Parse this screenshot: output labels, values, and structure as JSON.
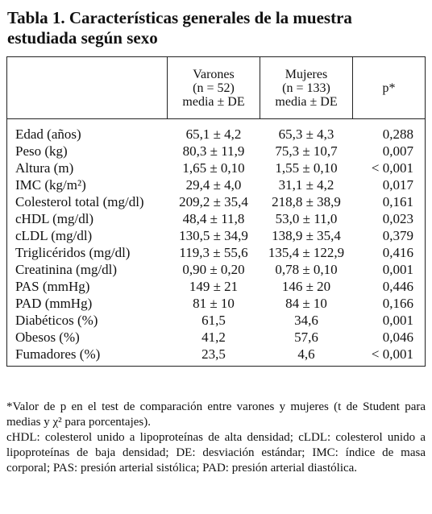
{
  "header": {
    "title": "Tabla 1. Características generales de la muestra estudiada según sexo"
  },
  "table": {
    "columns": [
      [
        "Varones",
        "(n = 52)",
        "media ± DE"
      ],
      [
        "Mujeres",
        "(n = 133)",
        "media ± DE"
      ],
      [
        "p*"
      ]
    ],
    "rows": [
      [
        "Edad (años)",
        "65,1 ± 4,2",
        "65,3 ± 4,3",
        "0,288"
      ],
      [
        "Peso (kg)",
        "80,3 ± 11,9",
        "75,3 ± 10,7",
        "0,007"
      ],
      [
        "Altura (m)",
        "1,65 ± 0,10",
        "1,55 ± 0,10",
        "< 0,001"
      ],
      [
        "IMC (kg/m²)",
        "29,4 ± 4,0",
        "31,1 ± 4,2",
        "0,017"
      ],
      [
        "Colesterol total (mg/dl)",
        "209,2 ± 35,4",
        "218,8 ± 38,9",
        "0,161"
      ],
      [
        "cHDL (mg/dl)",
        "48,4 ± 11,8",
        "53,0 ± 11,0",
        "0,023"
      ],
      [
        "cLDL (mg/dl)",
        "130,5 ± 34,9",
        "138,9 ± 35,4",
        "0,379"
      ],
      [
        "Triglicéridos (mg/dl)",
        "119,3 ± 55,6",
        "135,4 ± 122,9",
        "0,416"
      ],
      [
        "Creatinina (mg/dl)",
        "0,90 ± 0,20",
        "0,78 ± 0,10",
        "0,001"
      ],
      [
        "PAS (mmHg)",
        "149 ± 21",
        "146 ± 20",
        "0,446"
      ],
      [
        "PAD (mmHg)",
        "81 ± 10",
        "84 ± 10",
        "0,166"
      ],
      [
        "Diabéticos (%)",
        "61,5",
        "34,6",
        "0,001"
      ],
      [
        "Obesos (%)",
        "41,2",
        "57,6",
        "0,046"
      ],
      [
        "Fumadores (%)",
        "23,5",
        "4,6",
        "< 0,001"
      ]
    ]
  },
  "footnotes": [
    "*Valor de p en el test de comparación entre varones y mujeres (t de Student para medias y χ² para porcentajes).",
    "cHDL: colesterol unido a lipoproteínas de alta densidad; cLDL: colesterol unido a lipoproteínas de baja densidad; DE: desviación estándar; IMC: índice de masa corporal; PAS: presión arterial sistólica; PAD: presión arterial diastólica."
  ]
}
